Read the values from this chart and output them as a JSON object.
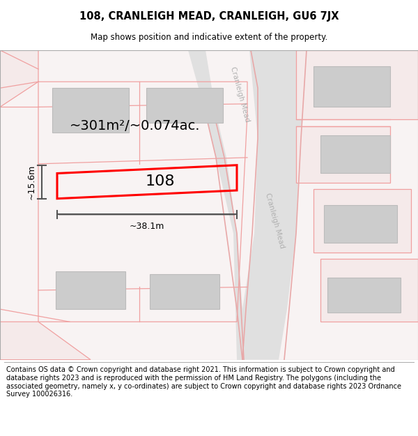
{
  "title": "108, CRANLEIGH MEAD, CRANLEIGH, GU6 7JX",
  "subtitle": "Map shows position and indicative extent of the property.",
  "footer": "Contains OS data © Crown copyright and database right 2021. This information is subject to Crown copyright and database rights 2023 and is reproduced with the permission of HM Land Registry. The polygons (including the associated geometry, namely x, y co-ordinates) are subject to Crown copyright and database rights 2023 Ordnance Survey 100026316.",
  "area_label": "~301m²/~0.074ac.",
  "property_number": "108",
  "dim_width": "~38.1m",
  "dim_height": "~15.6m",
  "road_label_top": "Cranleigh Mead",
  "road_label_bottom": "Cranleigh Mead",
  "map_bg": "#f9f5f5",
  "road_fill": "#e8e8e8",
  "road_line_color": "#e8a8a8",
  "lot_line_color": "#f0a0a0",
  "building_fill": "#cccccc",
  "building_edge": "#bbbbbb",
  "property_line_color": "#ff0000",
  "dim_line_color": "#555555",
  "title_fontsize": 10.5,
  "subtitle_fontsize": 8.5,
  "footer_fontsize": 7.0,
  "area_label_fontsize": 14,
  "property_number_fontsize": 16,
  "dim_fontsize": 9
}
